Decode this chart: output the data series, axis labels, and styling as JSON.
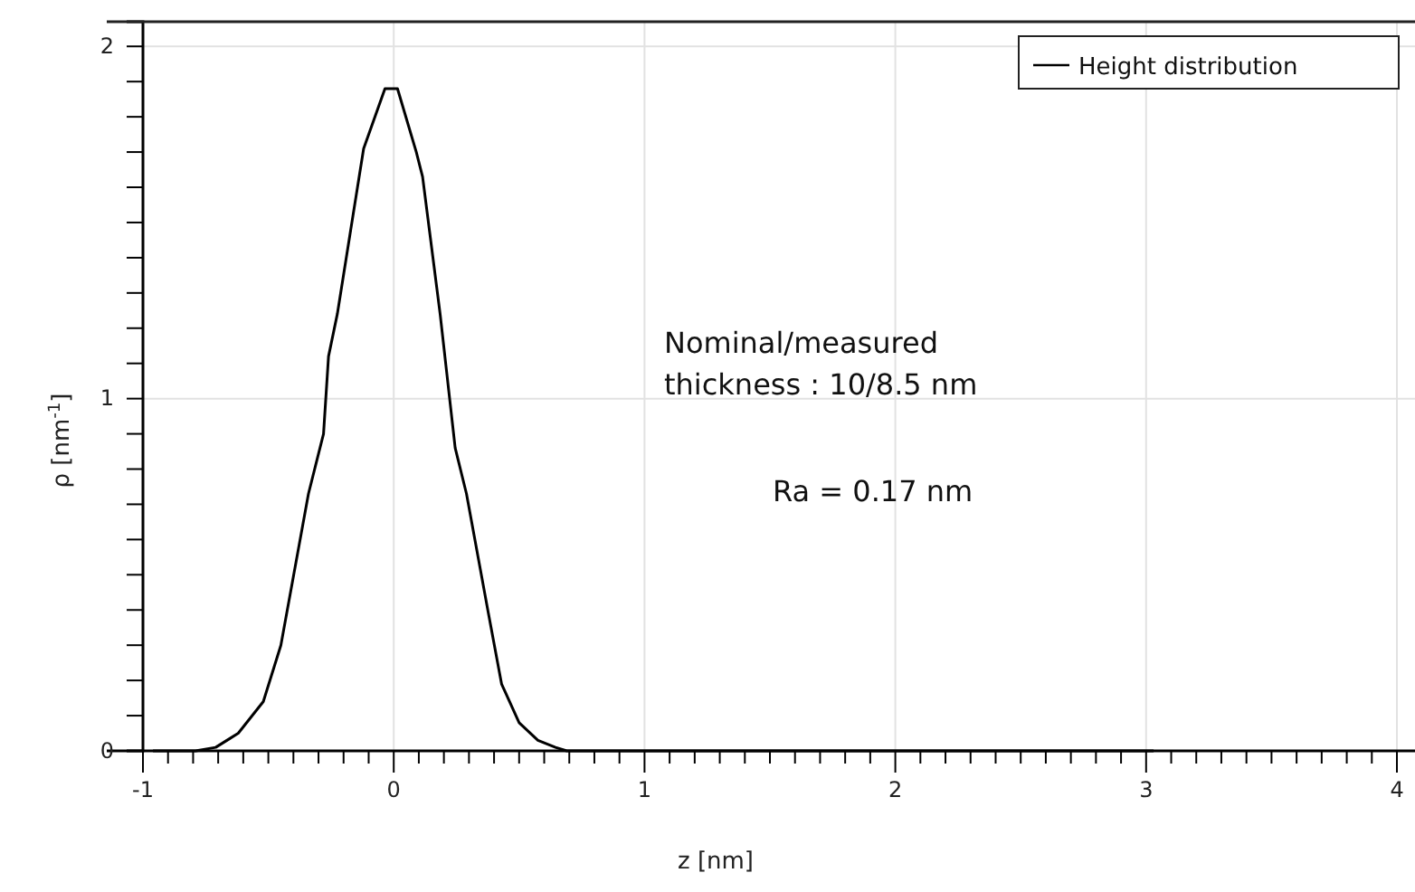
{
  "chart_data": {
    "type": "line",
    "xlabel": "z [nm]",
    "ylabel": "ρ [nm$^{-1}$]",
    "annotations": [
      "Nominal/measured\nthickness : 10/8.5 nm",
      "Ra = 0.17 nm"
    ],
    "xlim": [
      -1,
      4
    ],
    "ylim": [
      0,
      2.07
    ],
    "xticks": [
      -1,
      {
        "value": -0.9,
        "label": null
      },
      {
        "value": -0.8,
        "label": null
      },
      {
        "value": -0.7,
        "label": null
      },
      {
        "value": -0.6,
        "label": null
      },
      {
        "value": -0.5,
        "label": null
      },
      {
        "value": -0.4,
        "label": null
      },
      {
        "value": -0.3,
        "label": null
      },
      {
        "value": -0.2,
        "label": null
      },
      {
        "value": -0.1,
        "label": null
      },
      0,
      {
        "value": 0.1,
        "label": null
      },
      {
        "value": 0.2,
        "label": null
      },
      {
        "value": 0.3,
        "label": null
      },
      {
        "value": 0.4,
        "label": null
      },
      {
        "value": 0.5,
        "label": null
      },
      {
        "value": 0.6,
        "label": null
      },
      {
        "value": 0.7,
        "label": null
      },
      {
        "value": 0.8,
        "label": null
      },
      {
        "value": 0.9,
        "label": null
      },
      1,
      {
        "value": 1.1,
        "label": null
      },
      {
        "value": 1.2,
        "label": null
      },
      {
        "value": 1.3,
        "label": null
      },
      {
        "value": 1.4,
        "label": null
      },
      {
        "value": 1.5,
        "label": null
      },
      {
        "value": 1.6,
        "label": null
      },
      {
        "value": 1.7,
        "label": null
      },
      {
        "value": 1.8,
        "label": null
      },
      {
        "value": 1.9,
        "label": null
      },
      2,
      {
        "value": 2.1,
        "label": null
      },
      {
        "value": 2.2,
        "label": null
      },
      {
        "value": 2.3,
        "label": null
      },
      {
        "value": 2.4,
        "label": null
      },
      {
        "value": 2.5,
        "label": null
      },
      {
        "value": 2.6,
        "label": null
      },
      {
        "value": 2.7,
        "label": null
      },
      {
        "value": 2.8,
        "label": null
      },
      {
        "value": 2.9,
        "label": null
      },
      3,
      {
        "value": 3.1,
        "label": null
      },
      {
        "value": 3.2,
        "label": null
      },
      {
        "value": 3.3,
        "label": null
      },
      {
        "value": 3.4,
        "label": null
      },
      {
        "value": 3.5,
        "label": null
      },
      {
        "value": 3.6,
        "label": null
      },
      {
        "value": 3.7,
        "label": null
      },
      {
        "value": 3.8,
        "label": null
      },
      {
        "value": 3.9,
        "label": null
      },
      4
    ],
    "yticks": [
      0,
      {
        "value": 0.1,
        "label": null
      },
      {
        "value": 0.2,
        "label": null
      },
      {
        "value": 0.3,
        "label": null
      },
      {
        "value": 0.4,
        "label": null
      },
      {
        "value": 0.5,
        "label": null
      },
      {
        "value": 0.6,
        "label": null
      },
      {
        "value": 0.7,
        "label": null
      },
      {
        "value": 0.8,
        "label": null
      },
      {
        "value": 0.9,
        "label": null
      },
      1,
      {
        "value": 1.1,
        "label": null
      },
      {
        "value": 1.2,
        "label": null
      },
      {
        "value": 1.3,
        "label": null
      },
      {
        "value": 1.4,
        "label": null
      },
      {
        "value": 1.5,
        "label": null
      },
      {
        "value": 1.6,
        "label": null
      },
      {
        "value": 1.7,
        "label": null
      },
      {
        "value": 1.8,
        "label": null
      },
      {
        "value": 1.9,
        "label": null
      },
      2
    ],
    "grid": true,
    "legend": "top right",
    "marker": "none",
    "line_style": "solid",
    "series": [
      {
        "name": "Height distribution",
        "color": "#000000",
        "x": [
          -0.96,
          -0.79,
          -0.71,
          -0.62,
          -0.52,
          -0.45,
          -0.34,
          -0.28,
          -0.26,
          -0.225,
          -0.12,
          -0.035,
          0.015,
          0.09,
          0.115,
          0.185,
          0.245,
          0.29,
          0.375,
          0.43,
          0.5,
          0.575,
          0.645,
          0.69,
          1.0,
          2.0,
          3.03
        ],
        "values": [
          0,
          0,
          0.01,
          0.05,
          0.14,
          0.3,
          0.73,
          0.9,
          1.12,
          1.24,
          1.71,
          1.88,
          1.88,
          1.7,
          1.63,
          1.24,
          0.86,
          0.73,
          0.4,
          0.19,
          0.08,
          0.03,
          0.01,
          0,
          0,
          0,
          0
        ]
      }
    ]
  }
}
